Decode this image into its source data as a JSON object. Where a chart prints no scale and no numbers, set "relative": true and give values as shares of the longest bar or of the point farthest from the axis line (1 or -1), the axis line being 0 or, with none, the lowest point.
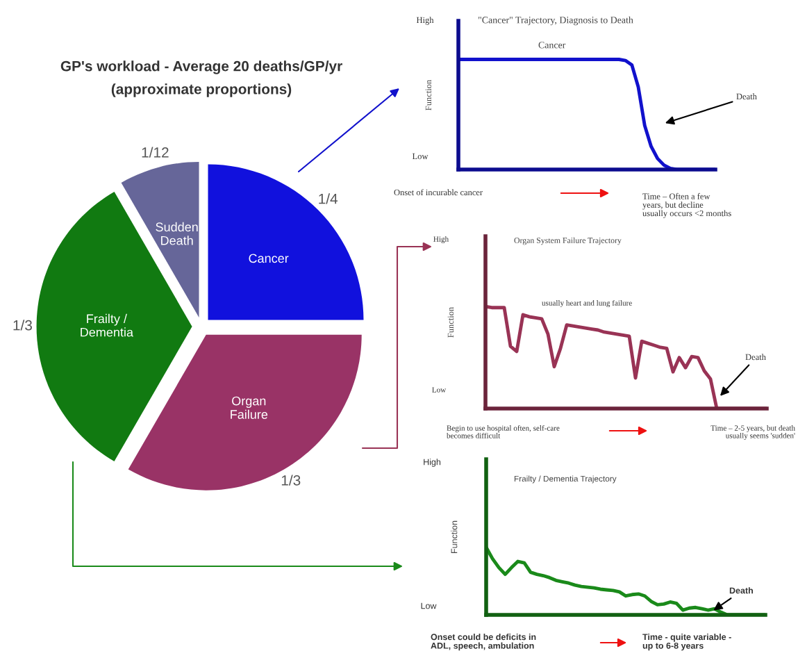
{
  "chart_data": [
    {
      "type": "pie",
      "title": "GP's workload - Average 20 deaths/GP/yr",
      "subtitle": "(approximate proportions)",
      "categories": [
        "Cancer",
        "Organ\nFailure",
        "Frailty /\nDementia",
        "Sudden\nDeath"
      ],
      "values": [
        0.25,
        0.3333,
        0.3333,
        0.0833
      ],
      "value_labels": [
        "1/4",
        "1/3",
        "1/3",
        "1/12"
      ],
      "colors": [
        "#1111dd",
        "#993366",
        "#117a11",
        "#666699"
      ]
    },
    {
      "type": "line",
      "relative": true,
      "title": "\"Cancer\" Trajectory, Diagnosis to Death",
      "ylabel": "Function",
      "categories": [
        null,
        null,
        null,
        null,
        null,
        null,
        null,
        null,
        null,
        null,
        null,
        null,
        null,
        null,
        null,
        null,
        null,
        null,
        null,
        null,
        null,
        null,
        null,
        null,
        null,
        null,
        null,
        null,
        null,
        null,
        null,
        null,
        null,
        null,
        null,
        null,
        null,
        null,
        null,
        null,
        null
      ],
      "series": [
        {
          "name": "Cancer",
          "color": "#1111cc",
          "values": [
            1,
            1,
            1,
            1,
            1,
            1,
            1,
            1,
            1,
            1,
            1,
            1,
            1,
            1,
            1,
            1,
            1,
            1,
            1,
            1,
            1,
            1,
            1,
            1,
            1,
            1,
            0.99,
            0.95,
            0.75,
            0.4,
            0.21,
            0.1,
            0.04,
            0.01,
            0,
            0,
            0,
            0,
            0,
            0,
            0
          ]
        }
      ],
      "annotations": [
        "High",
        "Low",
        "Death",
        "Onset of incurable cancer",
        "Time – Often a few\nyears, but decline\nusually occurs <2 months"
      ]
    },
    {
      "type": "line",
      "relative": true,
      "title": "Organ System Failure Trajectory",
      "ylabel": "Function",
      "categories": [
        null,
        null,
        null,
        null,
        null,
        null,
        null,
        null,
        null,
        null,
        null,
        null,
        null,
        null,
        null,
        null,
        null,
        null,
        null,
        null,
        null,
        null,
        null,
        null,
        null,
        null,
        null,
        null,
        null,
        null,
        null,
        null,
        null,
        null,
        null,
        null,
        null,
        null,
        null,
        null,
        null,
        null,
        null,
        null,
        null,
        null
      ],
      "series": [
        {
          "color": "#993355",
          "values": [
            1,
            0.99,
            0.99,
            0.99,
            0.61,
            0.56,
            0.92,
            0.9,
            0.89,
            0.88,
            0.73,
            0.41,
            0.59,
            0.82,
            0.81,
            0.8,
            0.79,
            0.78,
            0.77,
            0.75,
            0.74,
            0.73,
            0.72,
            0.71,
            0.3,
            0.66,
            0.64,
            0.62,
            0.6,
            0.59,
            0.36,
            0.5,
            0.4,
            0.51,
            0.5,
            0.37,
            0.29,
            0,
            0,
            0,
            0,
            0,
            0,
            0,
            0,
            0
          ]
        }
      ],
      "annotations": [
        "High",
        "Low",
        "Death",
        "Begin to use hospital often, self-care\nbecomes difficult",
        "Time – 2-5 years, but death\nusually seems 'sudden'",
        "usually heart and lung failure"
      ]
    },
    {
      "type": "line",
      "relative": true,
      "title": "Frailty / Dementia Trajectory",
      "ylabel": "Function",
      "categories": [
        null,
        null,
        null,
        null,
        null,
        null,
        null,
        null,
        null,
        null,
        null,
        null,
        null,
        null,
        null,
        null,
        null,
        null,
        null,
        null,
        null,
        null,
        null,
        null,
        null,
        null,
        null,
        null,
        null,
        null,
        null,
        null,
        null,
        null,
        null,
        null,
        null,
        null,
        null,
        null,
        null,
        null,
        null,
        null,
        null
      ],
      "series": [
        {
          "color": "#1a8a1a",
          "values": [
            1,
            0.83,
            0.7,
            0.6,
            0.7,
            0.79,
            0.77,
            0.63,
            0.6,
            0.58,
            0.55,
            0.51,
            0.49,
            0.47,
            0.44,
            0.42,
            0.41,
            0.4,
            0.38,
            0.37,
            0.36,
            0.34,
            0.28,
            0.3,
            0.31,
            0.28,
            0.2,
            0.15,
            0.16,
            0.19,
            0.17,
            0.07,
            0.1,
            0.11,
            0.09,
            0.07,
            0.09,
            0.04,
            0,
            0,
            0,
            0,
            0,
            0,
            0
          ]
        }
      ],
      "annotations": [
        "High",
        "Low",
        "Death",
        "Onset could be deficits in\nADL, speech, ambulation",
        "Time - quite variable -\nup to 6-8 years"
      ]
    }
  ]
}
